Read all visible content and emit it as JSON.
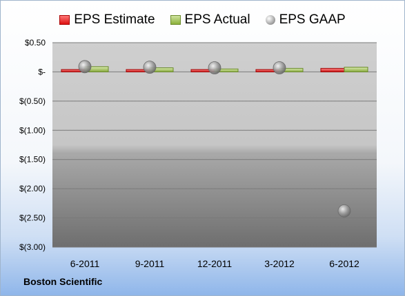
{
  "company_label": "Boston Scientific",
  "colors": {
    "estimate": "#e03a3a",
    "actual": "#9bbb59",
    "gaap": "#b0b0b0"
  },
  "chart_data": {
    "type": "bar",
    "categories": [
      "6-2011",
      "9-2011",
      "12-2011",
      "3-2012",
      "6-2012"
    ],
    "series": [
      {
        "name": "EPS Estimate",
        "type": "bar",
        "values": [
          0.04,
          0.04,
          0.04,
          0.04,
          0.06
        ]
      },
      {
        "name": "EPS Actual",
        "type": "bar",
        "values": [
          0.09,
          0.07,
          0.05,
          0.06,
          0.08
        ]
      },
      {
        "name": "EPS GAAP",
        "type": "scatter",
        "values": [
          0.09,
          0.08,
          0.07,
          0.07,
          -2.38
        ]
      }
    ],
    "ylim": [
      -3.0,
      0.5
    ],
    "yticks": [
      0.5,
      0,
      -0.5,
      -1.0,
      -1.5,
      -2.0,
      -2.5,
      -3.0
    ],
    "ytick_labels": [
      "$0.50",
      "$-",
      "$(0.50)",
      "$(1.00)",
      "$(1.50)",
      "$(2.00)",
      "$(2.50)",
      "$(3.00)"
    ],
    "grid": true,
    "legend_position": "top",
    "title": "",
    "xlabel": "",
    "ylabel": ""
  }
}
